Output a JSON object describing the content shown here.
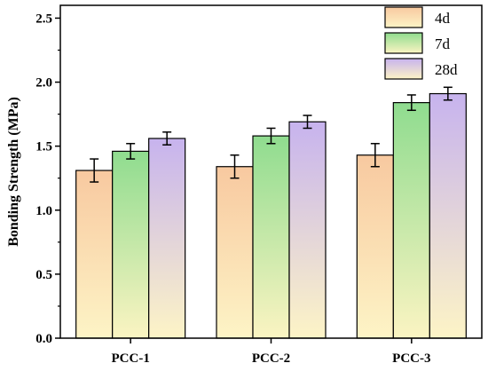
{
  "chart_data": {
    "type": "bar",
    "categories": [
      "PCC-1",
      "PCC-2",
      "PCC-3"
    ],
    "series": [
      {
        "name": "4d",
        "values": [
          1.31,
          1.34,
          1.43
        ],
        "errors": [
          0.09,
          0.09,
          0.09
        ],
        "color_top": "#f8c9a0",
        "color_bottom": "#fdf4c6"
      },
      {
        "name": "7d",
        "values": [
          1.46,
          1.58,
          1.84
        ],
        "errors": [
          0.06,
          0.06,
          0.06
        ],
        "color_top": "#8fdc8f",
        "color_bottom": "#fbf4c2"
      },
      {
        "name": "28d",
        "values": [
          1.56,
          1.69,
          1.91
        ],
        "errors": [
          0.05,
          0.05,
          0.05
        ],
        "color_top": "#c7b3ee",
        "color_bottom": "#fdf4c6"
      }
    ],
    "ylabel": "Bonding Strength  (MPa)",
    "xlabel": "",
    "ylim": [
      0,
      2.6
    ],
    "yticks": [
      "0.0",
      "0.5",
      "1.0",
      "1.5",
      "2.0",
      "2.5"
    ],
    "ytick_values": [
      0,
      0.5,
      1.0,
      1.5,
      2.0,
      2.5
    ],
    "grid": false,
    "legend_position": "top-right"
  }
}
